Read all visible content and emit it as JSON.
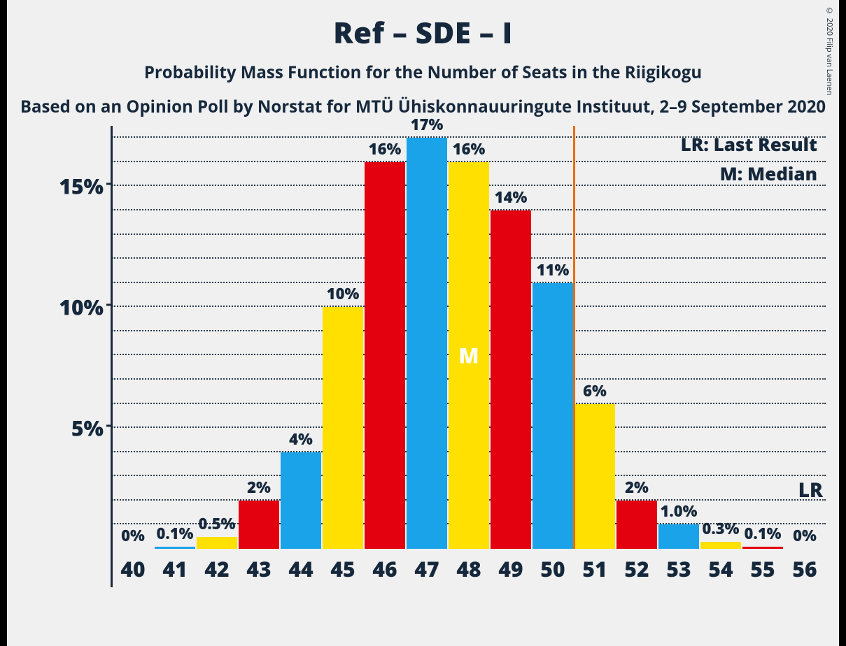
{
  "copyright": "© 2020 Filip van Laenen",
  "titles": {
    "main": "Ref – SDE – I",
    "sub": "Probability Mass Function for the Number of Seats in the Riigikogu",
    "source": "Based on an Opinion Poll by Norstat for MTÜ Ühiskonnauuringute Instituut, 2–9 September 2020"
  },
  "legend": {
    "lr": "LR: Last Result",
    "m": "M: Median"
  },
  "chart": {
    "type": "bar",
    "colors": {
      "red": "#e3000f",
      "blue": "#1aa3e8",
      "yellow": "#ffe000",
      "lr_line": "#e86c0a",
      "axis": "#16283c",
      "grid": "#2a3a4a",
      "bg": "#f0f0f0",
      "text": "#16283c"
    },
    "y": {
      "min": 0,
      "max": 17.5,
      "major_ticks": [
        5,
        10,
        15
      ],
      "minor_step": 1,
      "major_labels": [
        "5%",
        "10%",
        "15%"
      ]
    },
    "x": {
      "categories": [
        "40",
        "41",
        "42",
        "43",
        "44",
        "45",
        "46",
        "47",
        "48",
        "49",
        "50",
        "51",
        "52",
        "53",
        "54",
        "55",
        "56"
      ]
    },
    "bars": [
      {
        "x": "40",
        "value": 0,
        "label": "0%",
        "color": "red"
      },
      {
        "x": "41",
        "value": 0.1,
        "label": "0.1%",
        "color": "blue"
      },
      {
        "x": "42",
        "value": 0.5,
        "label": "0.5%",
        "color": "yellow"
      },
      {
        "x": "43",
        "value": 2,
        "label": "2%",
        "color": "red"
      },
      {
        "x": "44",
        "value": 4,
        "label": "4%",
        "color": "blue"
      },
      {
        "x": "45",
        "value": 10,
        "label": "10%",
        "color": "yellow"
      },
      {
        "x": "46",
        "value": 16,
        "label": "16%",
        "color": "red"
      },
      {
        "x": "47",
        "value": 17,
        "label": "17%",
        "color": "blue"
      },
      {
        "x": "48",
        "value": 16,
        "label": "16%",
        "color": "yellow"
      },
      {
        "x": "49",
        "value": 14,
        "label": "14%",
        "color": "red"
      },
      {
        "x": "50",
        "value": 11,
        "label": "11%",
        "color": "blue"
      },
      {
        "x": "51",
        "value": 6,
        "label": "6%",
        "color": "yellow"
      },
      {
        "x": "52",
        "value": 2,
        "label": "2%",
        "color": "red"
      },
      {
        "x": "53",
        "value": 1.0,
        "label": "1.0%",
        "color": "blue"
      },
      {
        "x": "54",
        "value": 0.3,
        "label": "0.3%",
        "color": "yellow"
      },
      {
        "x": "55",
        "value": 0.1,
        "label": "0.1%",
        "color": "red"
      },
      {
        "x": "56",
        "value": 0,
        "label": "0%",
        "color": "blue"
      }
    ],
    "median": {
      "x": "48",
      "label": "M"
    },
    "lr": {
      "between": [
        "50",
        "51"
      ],
      "label": "LR"
    },
    "bar_width_ratio": 0.98,
    "label_fontsize": 22,
    "xlabel_fontsize": 30,
    "ylabel_fontsize": 30
  }
}
